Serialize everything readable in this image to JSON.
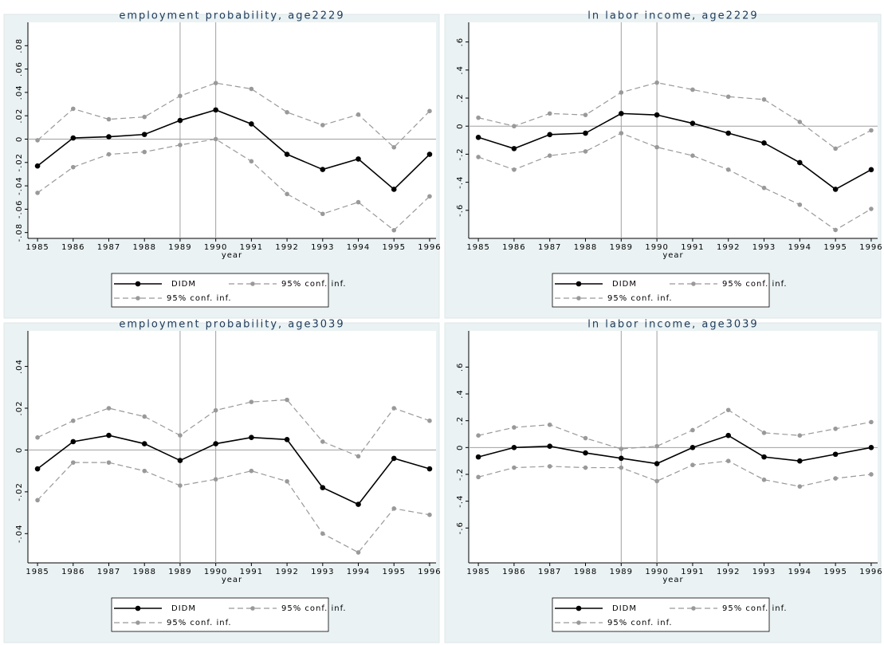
{
  "chart_data": [
    {
      "type": "line",
      "title": "employment probability, age2229",
      "x_label": "year",
      "x": [
        1985,
        1986,
        1987,
        1988,
        1989,
        1990,
        1991,
        1992,
        1993,
        1994,
        1995,
        1996
      ],
      "xlim": [
        1984.73,
        1996.18
      ],
      "xticks": [
        1985,
        1986,
        1987,
        1988,
        1989,
        1990,
        1991,
        1992,
        1993,
        1994,
        1995,
        1996
      ],
      "ylim": [
        -0.085,
        0.1
      ],
      "yticks": [
        {
          "value": 0.08,
          "label": ".08"
        },
        {
          "value": 0.06,
          "label": ".06"
        },
        {
          "value": 0.04,
          "label": ".04"
        },
        {
          "value": 0.02,
          "label": ".02"
        },
        0,
        {
          "value": -0.02,
          "label": "-.02"
        },
        {
          "value": -0.04,
          "label": "-.04"
        },
        {
          "value": -0.06,
          "label": "-.06"
        },
        {
          "value": -0.08,
          "label": "-.08"
        }
      ],
      "xlines": [
        1989,
        1990
      ],
      "yline": 0,
      "series": [
        {
          "name": "DIDM",
          "color": "#000000",
          "line_style": "solid",
          "values": [
            -0.023,
            0.001,
            0.002,
            0.004,
            0.016,
            0.025,
            0.013,
            -0.013,
            -0.026,
            -0.017,
            -0.043,
            -0.013
          ]
        },
        {
          "name": "95% conf. inf.",
          "color": "#999999",
          "line_style": "dashed",
          "values": [
            -0.001,
            0.026,
            0.017,
            0.019,
            0.037,
            0.048,
            0.043,
            0.023,
            0.012,
            0.021,
            -0.007,
            0.024
          ]
        },
        {
          "name": "95% conf. inf.",
          "color": "#999999",
          "line_style": "dashed",
          "values": [
            -0.046,
            -0.024,
            -0.013,
            -0.011,
            -0.005,
            0.0,
            -0.019,
            -0.047,
            -0.064,
            -0.054,
            -0.078,
            -0.049
          ]
        }
      ]
    },
    {
      "type": "line",
      "title": "ln labor income, age2229",
      "x_label": "year",
      "x": [
        1985,
        1986,
        1987,
        1988,
        1989,
        1990,
        1991,
        1992,
        1993,
        1994,
        1995,
        1996
      ],
      "xlim": [
        1984.73,
        1996.18
      ],
      "xticks": [
        1985,
        1986,
        1987,
        1988,
        1989,
        1990,
        1991,
        1992,
        1993,
        1994,
        1995,
        1996
      ],
      "ylim": [
        -0.8,
        0.74
      ],
      "yticks": [
        {
          "value": 0.6,
          "label": ".6"
        },
        {
          "value": 0.4,
          "label": ".4"
        },
        {
          "value": 0.2,
          "label": ".2"
        },
        0,
        {
          "value": -0.2,
          "label": "-.2"
        },
        {
          "value": -0.4,
          "label": "-.4"
        },
        {
          "value": -0.6,
          "label": "-.6"
        }
      ],
      "xlines": [
        1989,
        1990
      ],
      "yline": 0,
      "series": [
        {
          "name": "DIDM",
          "color": "#000000",
          "line_style": "solid",
          "values": [
            -0.08,
            -0.16,
            -0.06,
            -0.05,
            0.09,
            0.08,
            0.02,
            -0.05,
            -0.12,
            -0.26,
            -0.45,
            -0.31
          ]
        },
        {
          "name": "95% conf. inf.",
          "color": "#999999",
          "line_style": "dashed",
          "values": [
            0.06,
            0.0,
            0.09,
            0.08,
            0.24,
            0.31,
            0.26,
            0.21,
            0.19,
            0.03,
            -0.16,
            -0.03
          ]
        },
        {
          "name": "95% conf. inf.",
          "color": "#999999",
          "line_style": "dashed",
          "values": [
            -0.22,
            -0.31,
            -0.21,
            -0.18,
            -0.05,
            -0.15,
            -0.21,
            -0.31,
            -0.44,
            -0.56,
            -0.74,
            -0.59
          ]
        }
      ]
    },
    {
      "type": "line",
      "title": "employment probability, age3039",
      "x_label": "year",
      "x": [
        1985,
        1986,
        1987,
        1988,
        1989,
        1990,
        1991,
        1992,
        1993,
        1994,
        1995,
        1996
      ],
      "xlim": [
        1984.73,
        1996.18
      ],
      "xticks": [
        1985,
        1986,
        1987,
        1988,
        1989,
        1990,
        1991,
        1992,
        1993,
        1994,
        1995,
        1996
      ],
      "ylim": [
        -0.054,
        0.057
      ],
      "yticks": [
        {
          "value": 0.04,
          "label": ".04"
        },
        {
          "value": 0.02,
          "label": ".02"
        },
        0,
        {
          "value": -0.02,
          "label": "-.02"
        },
        {
          "value": -0.04,
          "label": "-.04"
        }
      ],
      "xlines": [
        1989,
        1990
      ],
      "yline": 0,
      "series": [
        {
          "name": "DIDM",
          "color": "#000000",
          "line_style": "solid",
          "values": [
            -0.009,
            0.004,
            0.007,
            0.003,
            -0.005,
            0.003,
            0.006,
            0.005,
            -0.018,
            -0.026,
            -0.004,
            -0.009
          ]
        },
        {
          "name": "95% conf. inf.",
          "color": "#999999",
          "line_style": "dashed",
          "values": [
            0.006,
            0.014,
            0.02,
            0.016,
            0.007,
            0.019,
            0.023,
            0.024,
            0.004,
            -0.003,
            0.02,
            0.014
          ]
        },
        {
          "name": "95% conf. inf.",
          "color": "#999999",
          "line_style": "dashed",
          "values": [
            -0.024,
            -0.006,
            -0.006,
            -0.01,
            -0.017,
            -0.014,
            -0.01,
            -0.015,
            -0.04,
            -0.049,
            -0.028,
            -0.031
          ]
        }
      ]
    },
    {
      "type": "line",
      "title": "ln labor income, age3039",
      "x_label": "year",
      "x": [
        1985,
        1986,
        1987,
        1988,
        1989,
        1990,
        1991,
        1992,
        1993,
        1994,
        1995,
        1996
      ],
      "xlim": [
        1984.73,
        1996.18
      ],
      "xticks": [
        1985,
        1986,
        1987,
        1988,
        1989,
        1990,
        1991,
        1992,
        1993,
        1994,
        1995,
        1996
      ],
      "ylim": [
        -0.86,
        0.87
      ],
      "yticks": [
        {
          "value": 0.6,
          "label": ".6"
        },
        {
          "value": 0.4,
          "label": ".4"
        },
        {
          "value": 0.2,
          "label": ".2"
        },
        0,
        {
          "value": -0.2,
          "label": "-.2"
        },
        {
          "value": -0.4,
          "label": "-.4"
        },
        {
          "value": -0.6,
          "label": "-.6"
        }
      ],
      "xlines": [
        1989,
        1990
      ],
      "yline": 0,
      "series": [
        {
          "name": "DIDM",
          "color": "#000000",
          "line_style": "solid",
          "values": [
            -0.07,
            0.0,
            0.01,
            -0.04,
            -0.08,
            -0.12,
            0.0,
            0.09,
            -0.07,
            -0.1,
            -0.05,
            0.0
          ]
        },
        {
          "name": "95% conf. inf.",
          "color": "#999999",
          "line_style": "dashed",
          "values": [
            0.09,
            0.15,
            0.17,
            0.07,
            -0.01,
            0.01,
            0.13,
            0.28,
            0.11,
            0.09,
            0.14,
            0.19
          ]
        },
        {
          "name": "95% conf. inf.",
          "color": "#999999",
          "line_style": "dashed",
          "values": [
            -0.22,
            -0.15,
            -0.14,
            -0.15,
            -0.15,
            -0.25,
            -0.13,
            -0.1,
            -0.24,
            -0.29,
            -0.23,
            -0.2
          ]
        }
      ]
    }
  ]
}
